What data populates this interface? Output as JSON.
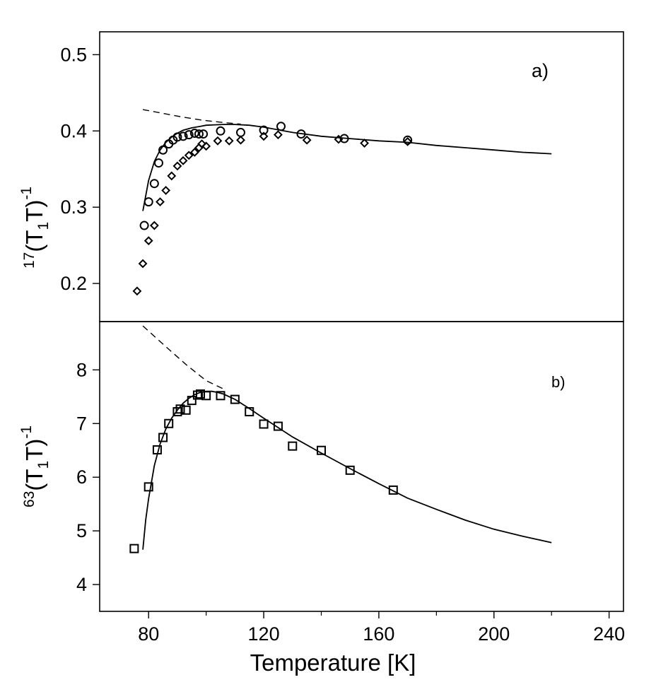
{
  "chart_data": [
    {
      "type": "scatter",
      "panel_label": "a)",
      "ylabel": {
        "mass": "17",
        "open": "(T",
        "sub": "1",
        "close": "T)",
        "exp": "-1"
      },
      "xlim": [
        63,
        245
      ],
      "ylim": [
        0.15,
        0.53
      ],
      "yticks": [
        0.2,
        0.3,
        0.4,
        0.5
      ],
      "ytick_labels": [
        "0.2",
        "0.3",
        "0.4",
        "0.5"
      ],
      "series": [
        {
          "name": "circles",
          "marker": "circle",
          "x": [
            78.5,
            80,
            82,
            83.5,
            85,
            87,
            88.5,
            90,
            92,
            94,
            96,
            97.5,
            99,
            105,
            112,
            120,
            126,
            133,
            148,
            170
          ],
          "y": [
            0.276,
            0.307,
            0.331,
            0.358,
            0.375,
            0.383,
            0.388,
            0.392,
            0.393,
            0.395,
            0.397,
            0.396,
            0.396,
            0.4,
            0.398,
            0.401,
            0.406,
            0.396,
            0.39,
            0.388
          ]
        },
        {
          "name": "diamonds",
          "marker": "diamond",
          "x": [
            76,
            78,
            80,
            82,
            84,
            86,
            88,
            90,
            92,
            94,
            96,
            97.5,
            98.5,
            100,
            104,
            108,
            112,
            120,
            125,
            135,
            146,
            155,
            170
          ],
          "y": [
            0.19,
            0.226,
            0.256,
            0.276,
            0.307,
            0.322,
            0.341,
            0.354,
            0.361,
            0.368,
            0.372,
            0.378,
            0.383,
            0.38,
            0.387,
            0.387,
            0.388,
            0.393,
            0.395,
            0.388,
            0.389,
            0.384,
            0.386
          ]
        },
        {
          "name": "fit",
          "style": "solid",
          "x": [
            78,
            80,
            82,
            84,
            86,
            88,
            90,
            92,
            95,
            98,
            100,
            103,
            106,
            110,
            115,
            120,
            130,
            140,
            150,
            160,
            170,
            180,
            190,
            200,
            210,
            220
          ],
          "y": [
            0.295,
            0.335,
            0.36,
            0.375,
            0.385,
            0.392,
            0.397,
            0.401,
            0.404,
            0.406,
            0.4075,
            0.408,
            0.4085,
            0.4085,
            0.4075,
            0.405,
            0.398,
            0.393,
            0.39,
            0.387,
            0.385,
            0.381,
            0.378,
            0.375,
            0.372,
            0.37
          ]
        },
        {
          "name": "extrapolation",
          "style": "dashed",
          "x": [
            78,
            85,
            92,
            99,
            106,
            112
          ],
          "y": [
            0.428,
            0.423,
            0.418,
            0.414,
            0.411,
            0.409
          ]
        }
      ]
    },
    {
      "type": "scatter",
      "panel_label": "b)",
      "ylabel": {
        "mass": "63",
        "open": "(T",
        "sub": "1",
        "close": "T)",
        "exp": "-1"
      },
      "xlabel": "Temperature [K]",
      "xlim": [
        63,
        245
      ],
      "ylim": [
        3.5,
        8.9
      ],
      "xticks": [
        80,
        120,
        160,
        200,
        240
      ],
      "xtick_labels": [
        "80",
        "120",
        "160",
        "200",
        "240"
      ],
      "x_minor_ticks": [
        100,
        140,
        180,
        220
      ],
      "yticks": [
        4,
        5,
        6,
        7,
        8
      ],
      "ytick_labels": [
        "4",
        "5",
        "6",
        "7",
        "8"
      ],
      "series": [
        {
          "name": "squares",
          "marker": "square",
          "x": [
            75,
            80,
            83,
            85,
            87,
            90,
            91,
            93,
            95,
            97,
            98,
            100,
            105,
            110,
            115,
            120,
            125,
            130,
            140,
            150,
            165
          ],
          "y": [
            4.67,
            5.82,
            6.51,
            6.74,
            7.0,
            7.22,
            7.27,
            7.25,
            7.43,
            7.53,
            7.55,
            7.52,
            7.52,
            7.45,
            7.22,
            6.99,
            6.95,
            6.58,
            6.5,
            6.13,
            5.76
          ]
        },
        {
          "name": "fit",
          "style": "solid",
          "x": [
            78,
            79,
            80,
            82,
            84,
            86,
            88,
            90,
            92,
            94,
            96,
            98,
            100,
            102,
            104,
            106,
            110,
            115,
            120,
            130,
            140,
            150,
            160,
            170,
            180,
            190,
            200,
            210,
            220
          ],
          "y": [
            4.65,
            5.2,
            5.6,
            6.22,
            6.62,
            6.9,
            7.1,
            7.25,
            7.38,
            7.47,
            7.54,
            7.58,
            7.6,
            7.6,
            7.58,
            7.55,
            7.45,
            7.28,
            7.1,
            6.75,
            6.45,
            6.16,
            5.88,
            5.61,
            5.4,
            5.2,
            5.03,
            4.9,
            4.78
          ]
        },
        {
          "name": "extrapolation",
          "style": "dashed",
          "x": [
            78,
            85,
            93,
            100,
            107
          ],
          "y": [
            8.82,
            8.48,
            8.1,
            7.8,
            7.62
          ]
        }
      ]
    }
  ]
}
